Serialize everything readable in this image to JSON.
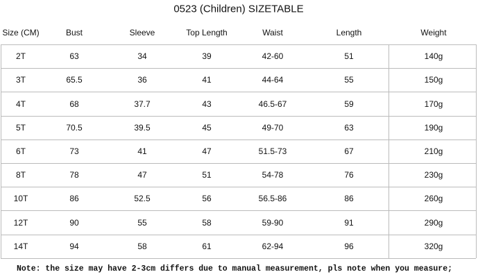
{
  "title": "0523 (Children) SIZETABLE",
  "table": {
    "header": [
      "Size (CM)",
      "Bust",
      "Sleeve",
      "Top Length",
      "Waist",
      "Length",
      "Weight"
    ],
    "rows": [
      [
        "2T",
        "63",
        "34",
        "39",
        "42-60",
        "51",
        "140g"
      ],
      [
        "3T",
        "65.5",
        "36",
        "41",
        "44-64",
        "55",
        "150g"
      ],
      [
        "4T",
        "68",
        "37.7",
        "43",
        "46.5-67",
        "59",
        "170g"
      ],
      [
        "5T",
        "70.5",
        "39.5",
        "45",
        "49-70",
        "63",
        "190g"
      ],
      [
        "6T",
        "73",
        "41",
        "47",
        "51.5-73",
        "67",
        "210g"
      ],
      [
        "8T",
        "78",
        "47",
        "51",
        "54-78",
        "76",
        "230g"
      ],
      [
        "10T",
        "86",
        "52.5",
        "56",
        "56.5-86",
        "86",
        "260g"
      ],
      [
        "12T",
        "90",
        "55",
        "58",
        "59-90",
        "91",
        "290g"
      ],
      [
        "14T",
        "94",
        "58",
        "61",
        "62-94",
        "96",
        "320g"
      ]
    ]
  },
  "note": "Note: the size may have 2-3cm differs due to manual measurement, pls note when you measure;"
}
